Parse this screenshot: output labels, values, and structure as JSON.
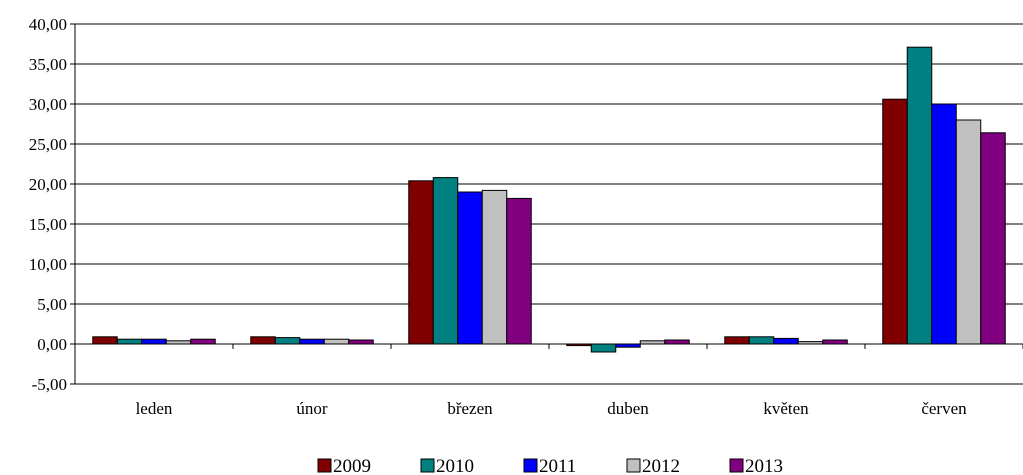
{
  "chart_data": {
    "type": "bar",
    "categories": [
      "leden",
      "únor",
      "březen",
      "duben",
      "květen",
      "červen"
    ],
    "series": [
      {
        "name": "2009",
        "color": "#800000",
        "values": [
          0.9,
          0.9,
          20.4,
          -0.2,
          0.9,
          30.6
        ]
      },
      {
        "name": "2010",
        "color": "#008080",
        "values": [
          0.6,
          0.8,
          20.8,
          -1.0,
          0.9,
          37.1
        ]
      },
      {
        "name": "2011",
        "color": "#0000ff",
        "values": [
          0.6,
          0.6,
          19.0,
          -0.4,
          0.7,
          30.0
        ]
      },
      {
        "name": "2012",
        "color": "#c0c0c0",
        "values": [
          0.4,
          0.6,
          19.2,
          0.4,
          0.3,
          28.0
        ]
      },
      {
        "name": "2013",
        "color": "#800080",
        "values": [
          0.6,
          0.5,
          18.2,
          0.5,
          0.5,
          26.4
        ]
      }
    ],
    "ylim": [
      -5,
      40
    ],
    "ytick_step": 5,
    "ytick_labels": [
      "-5,00",
      "0,00",
      "5,00",
      "10,00",
      "15,00",
      "20,00",
      "25,00",
      "30,00",
      "35,00",
      "40,00"
    ],
    "grid": true,
    "legend": "bottom",
    "title": "",
    "xlabel": "",
    "ylabel": ""
  }
}
